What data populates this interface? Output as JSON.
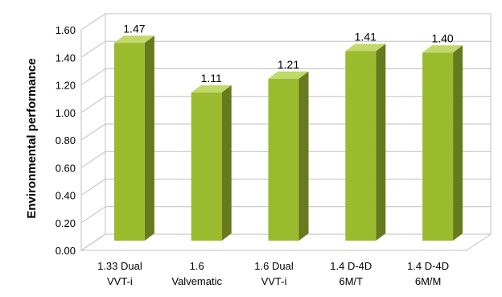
{
  "chart_data": {
    "type": "bar",
    "title": "",
    "xlabel": "",
    "ylabel": "Environmental performance",
    "categories": [
      [
        "1.33 Dual",
        "VVT-i"
      ],
      [
        "1.6",
        "Valvematic"
      ],
      [
        "1.6 Dual",
        "VVT-i"
      ],
      [
        "1.4 D-4D",
        "6M/T"
      ],
      [
        "1.4 D-4D",
        "6M/M"
      ]
    ],
    "values": [
      1.47,
      1.11,
      1.21,
      1.41,
      1.4
    ],
    "value_labels": [
      "1.47",
      "1.11",
      "1.21",
      "1.41",
      "1.40"
    ],
    "ylim": [
      0,
      1.6
    ],
    "yticks": [
      "0.00",
      "0.20",
      "0.40",
      "0.60",
      "0.80",
      "1.00",
      "1.20",
      "1.40",
      "1.60"
    ],
    "grid": true,
    "legend": "none",
    "style": "3d-column",
    "colors": {
      "bar_front": "#9bbb2e",
      "bar_side": "#667b1e",
      "bar_top": "#c2d86a",
      "grid": "#bfbfbf"
    }
  }
}
